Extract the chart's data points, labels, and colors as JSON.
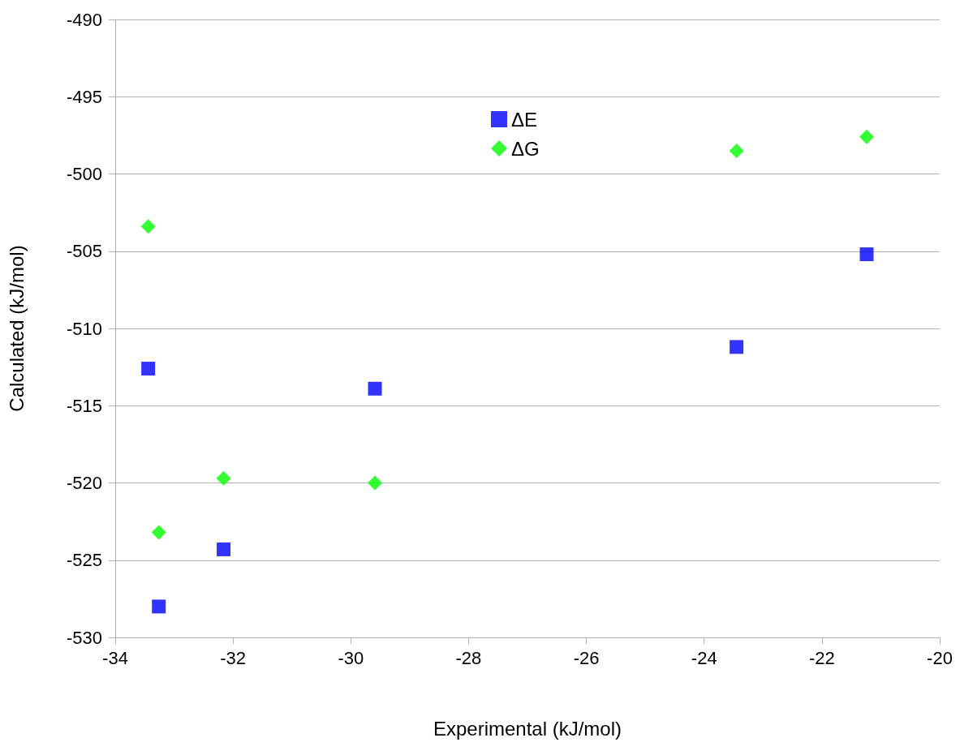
{
  "chart_data": {
    "type": "scatter",
    "xlabel": "Experimental (kJ/mol)",
    "ylabel": "Calculated (kJ/mol)",
    "xlim": [
      -34,
      -20
    ],
    "xticks": [
      -34,
      -32,
      -30,
      -28,
      -26,
      -24,
      -22,
      -20
    ],
    "ylim": [
      -530,
      -490
    ],
    "yticks": [
      -530,
      -525,
      -520,
      -515,
      -510,
      -505,
      -500,
      -495,
      -490
    ],
    "grid": "y",
    "legend": "top",
    "x": [
      -33.44,
      -33.26,
      -32.16,
      -29.59,
      -23.45,
      -21.24
    ],
    "series": [
      {
        "name": "ΔE",
        "color": "#0000ff",
        "marker": "square",
        "values": [
          -512.6,
          -528.0,
          -524.3,
          -513.9,
          -511.2,
          -505.2
        ]
      },
      {
        "name": "ΔG",
        "color": "#00ff00",
        "marker": "diamond",
        "values": [
          -503.4,
          -523.2,
          -519.7,
          -520.0,
          -498.5,
          -497.6
        ]
      }
    ]
  }
}
